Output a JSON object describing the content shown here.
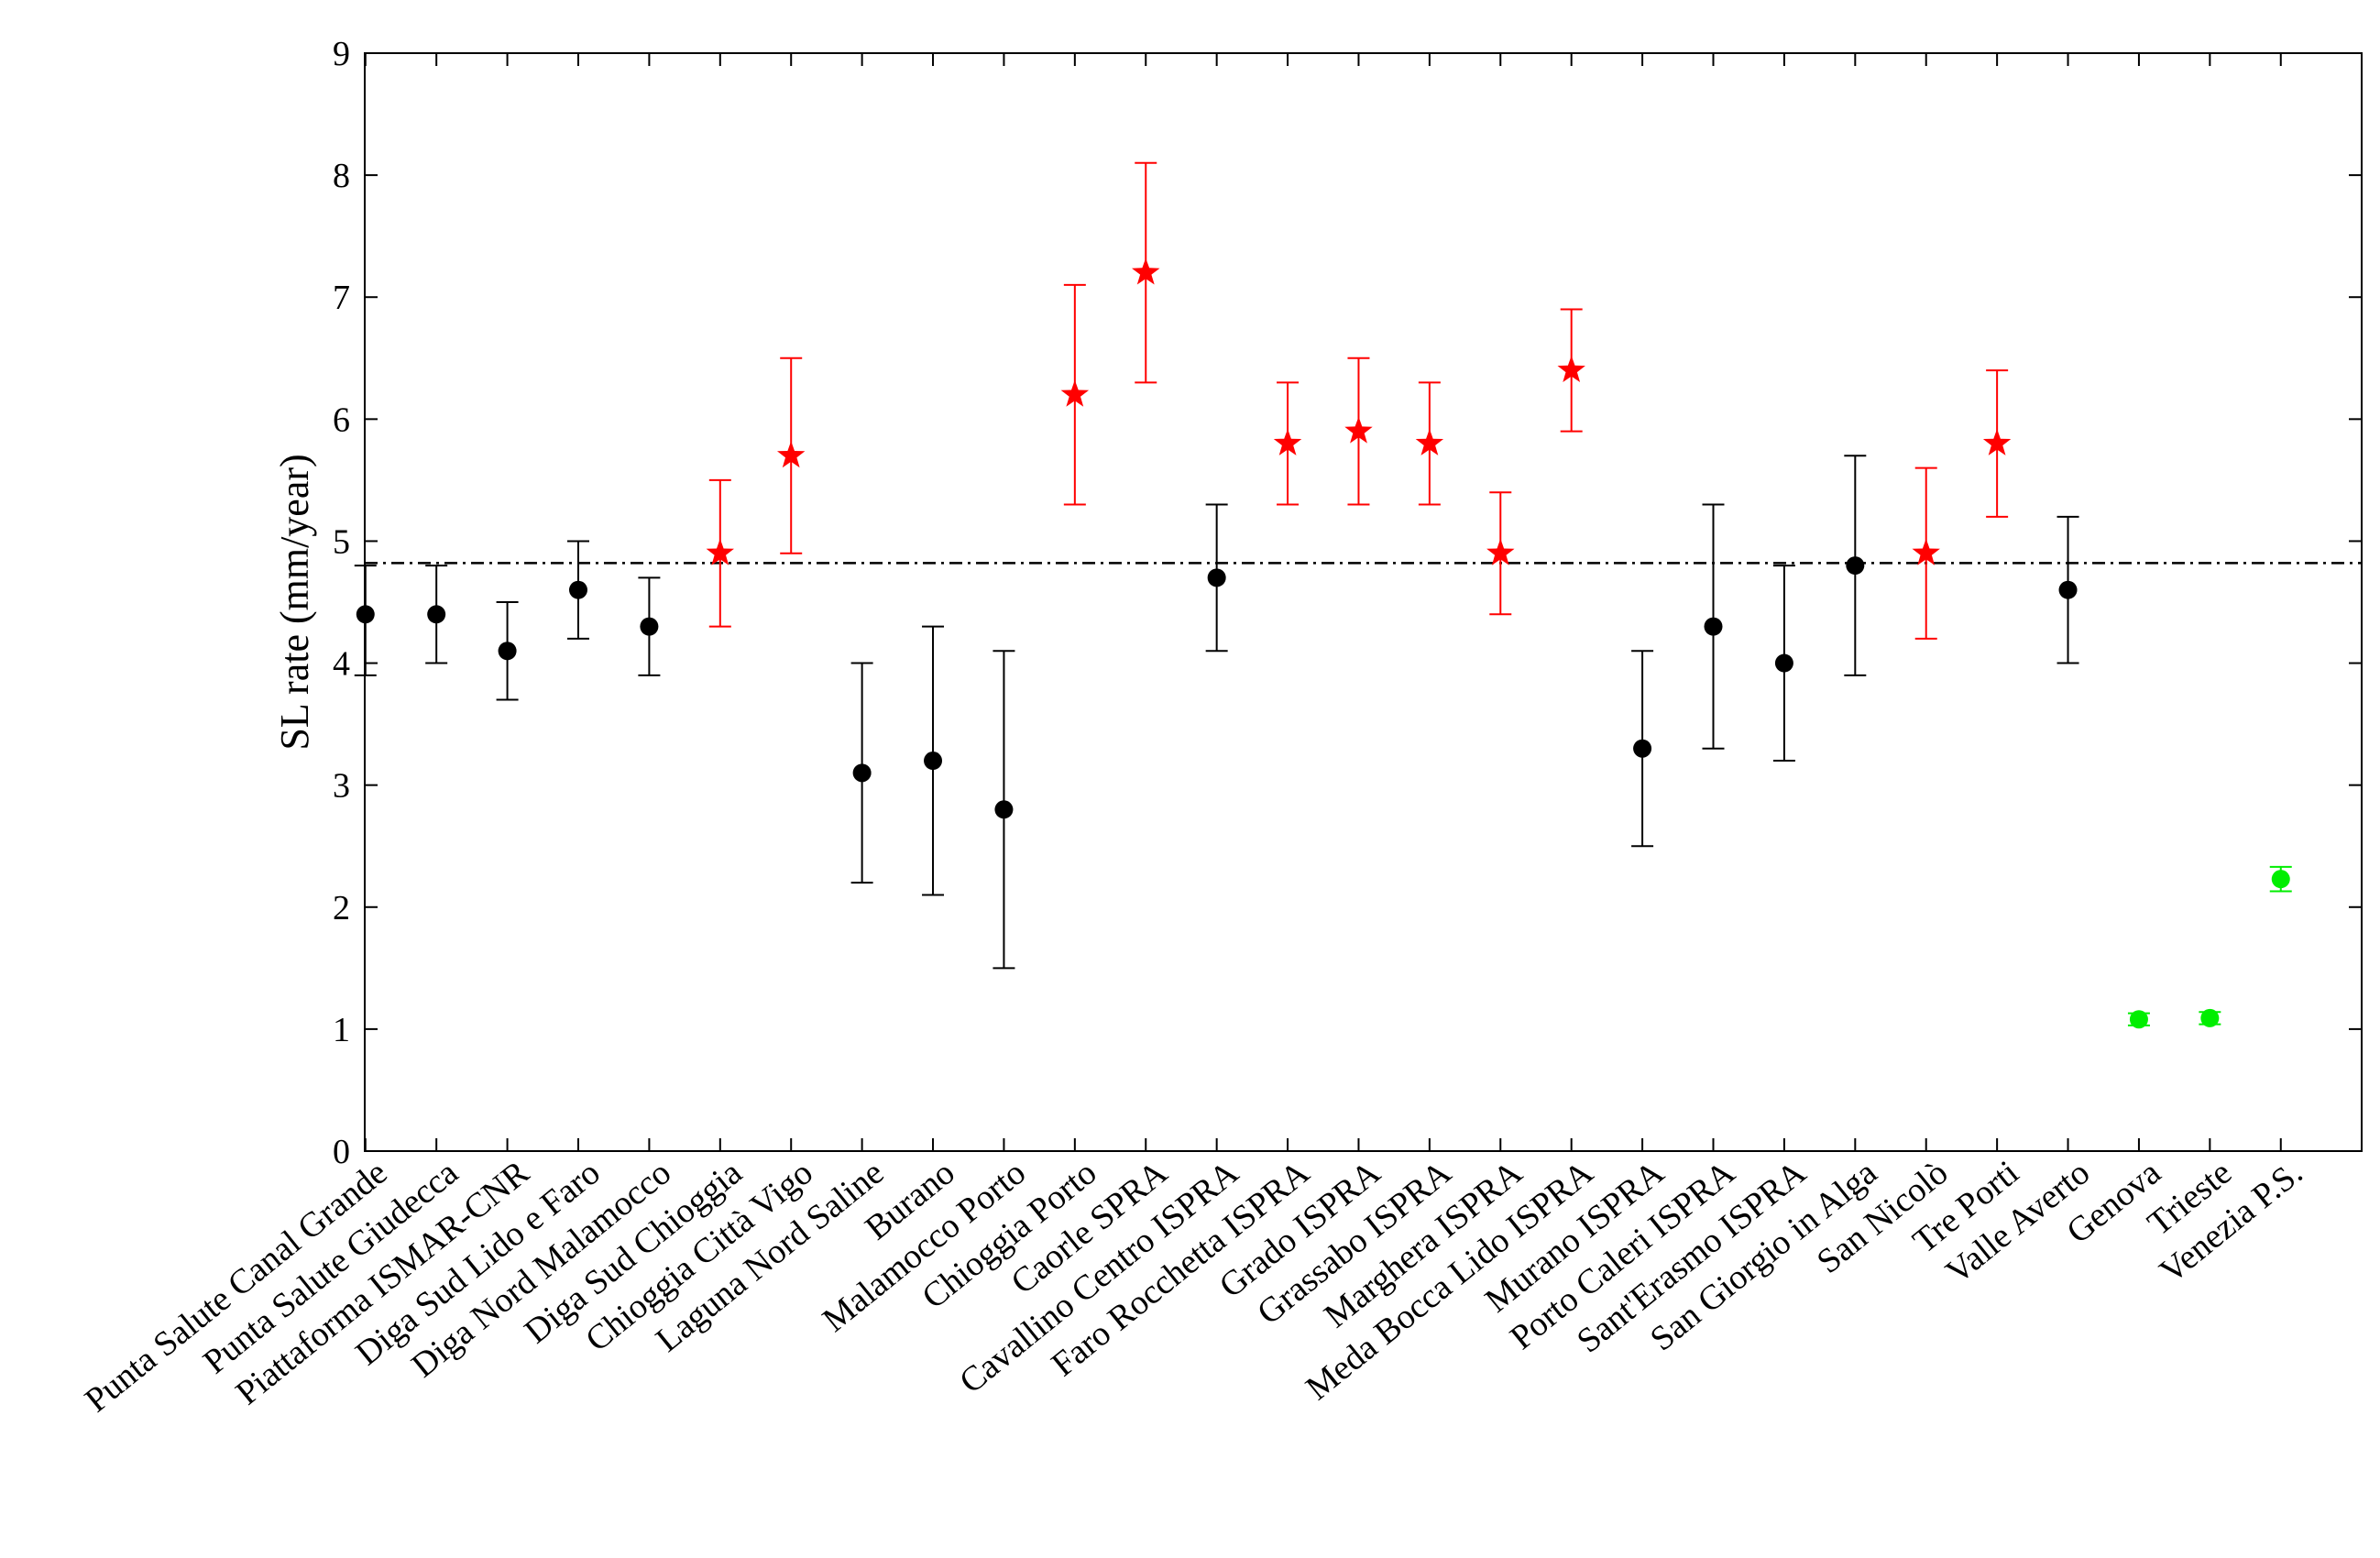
{
  "chart_data": {
    "type": "scatter",
    "title": "",
    "xlabel": "",
    "ylabel": "SL rate (mm/year)",
    "ylim": [
      0,
      9
    ],
    "yticks": [
      "0",
      "1",
      "2",
      "3",
      "4",
      "5",
      "6",
      "7",
      "8",
      "9"
    ],
    "grid": false,
    "reference_line": {
      "y": 4.82,
      "style": "dash-dot",
      "color": "#000000"
    },
    "marker_styles": {
      "black": {
        "shape": "circle",
        "color": "#000000"
      },
      "red": {
        "shape": "star",
        "color": "#ff0000"
      },
      "green": {
        "shape": "circle",
        "color": "#00ee00"
      }
    },
    "categories": [
      "Punta Salute Canal Grande",
      "Punta Salute Giudecca",
      "Piattaforma ISMAR-CNR",
      "Diga Sud Lido e Faro",
      "Diga Nord Malamocco",
      "Diga Sud Chioggia",
      "Chioggia Città Vigo",
      "Laguna Nord Saline",
      "Burano",
      "Malamocco Porto",
      "Chioggia Porto",
      "Caorle SPRA",
      "Cavallino Centro ISPRA",
      "Faro Rocchetta ISPRA",
      "Grado ISPRA",
      "Grassabo ISPRA",
      "Marghera ISPRA",
      "Meda Bocca Lido ISPRA",
      "Murano ISPRA",
      "Porto Caleri ISPRA",
      "Sant'Erasmo ISPRA",
      "San Giorgio in Alga",
      "San Nicolò",
      "Tre Porti",
      "Valle Averto",
      "Genova",
      "Trieste",
      "Venezia P.S."
    ],
    "values": [
      4.4,
      4.4,
      4.1,
      4.6,
      4.3,
      4.9,
      5.7,
      3.1,
      3.2,
      2.8,
      6.2,
      7.2,
      4.7,
      5.8,
      5.9,
      5.8,
      4.9,
      6.4,
      3.3,
      4.3,
      4.0,
      4.8,
      4.9,
      5.8,
      4.6,
      1.08,
      1.09,
      2.23
    ],
    "error_low": [
      3.9,
      4.0,
      3.7,
      4.2,
      3.9,
      4.3,
      4.9,
      2.2,
      2.1,
      1.5,
      5.3,
      6.3,
      4.1,
      5.3,
      5.3,
      5.3,
      4.4,
      5.9,
      2.5,
      3.3,
      3.2,
      3.9,
      4.2,
      5.2,
      4.0,
      1.03,
      1.04,
      2.13
    ],
    "error_high": [
      4.8,
      4.8,
      4.5,
      5.0,
      4.7,
      5.5,
      6.5,
      4.0,
      4.3,
      4.1,
      7.1,
      8.1,
      5.3,
      6.3,
      6.5,
      6.3,
      5.4,
      6.9,
      4.1,
      5.3,
      4.8,
      5.7,
      5.6,
      6.4,
      5.2,
      1.13,
      1.14,
      2.33
    ],
    "style": [
      "black",
      "black",
      "black",
      "black",
      "black",
      "red",
      "red",
      "black",
      "black",
      "black",
      "red",
      "red",
      "black",
      "red",
      "red",
      "red",
      "red",
      "red",
      "black",
      "black",
      "black",
      "black",
      "red",
      "red",
      "black",
      "green",
      "green",
      "green"
    ]
  }
}
